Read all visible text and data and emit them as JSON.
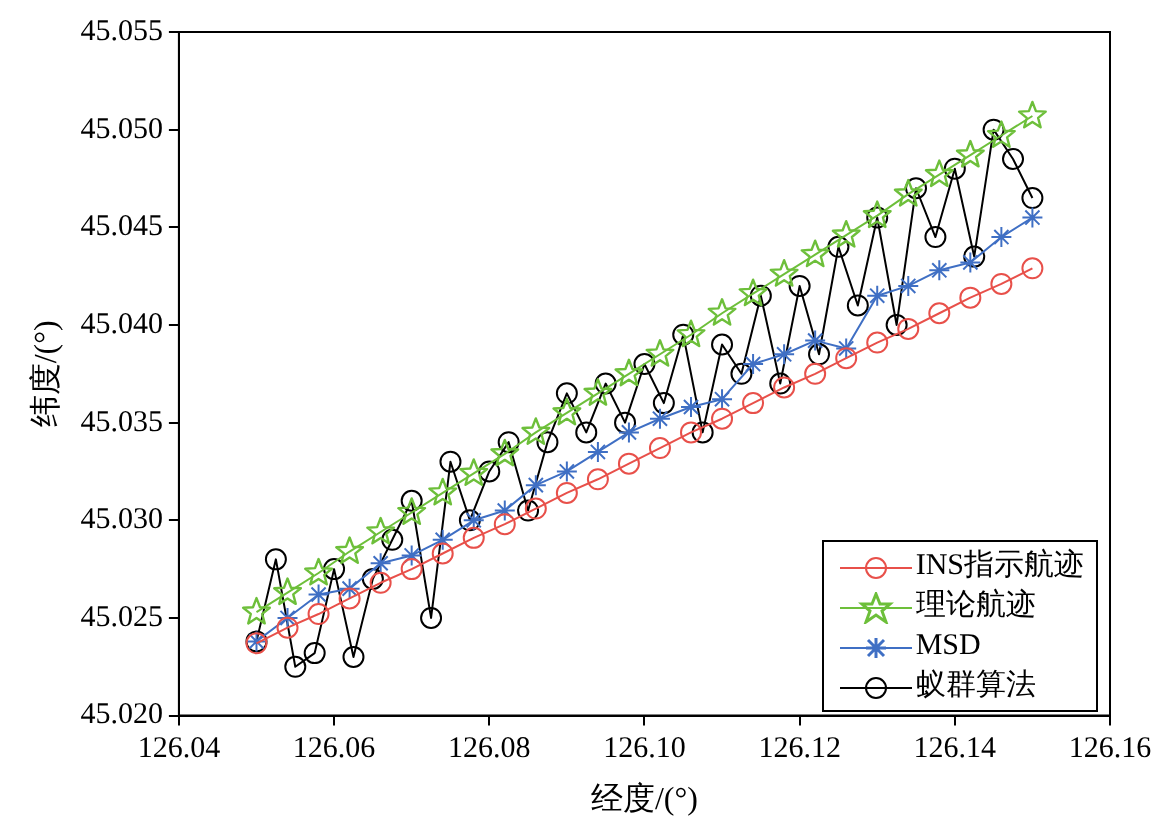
{
  "chart_data": {
    "type": "line",
    "xlabel": "经度/(°)",
    "ylabel": "纬度/(°)",
    "xlim": [
      126.04,
      126.16
    ],
    "xticks": [
      {
        "value": 126.04,
        "label": "126.04"
      },
      {
        "value": 126.06,
        "label": "126.06"
      },
      {
        "value": 126.08,
        "label": "126.08"
      },
      {
        "value": 126.1,
        "label": "126.10"
      },
      {
        "value": 126.12,
        "label": "126.12"
      },
      {
        "value": 126.14,
        "label": "126.14"
      },
      {
        "value": 126.16,
        "label": "126.16"
      }
    ],
    "ylim": [
      45.02,
      45.055
    ],
    "yticks": [
      {
        "value": 45.02,
        "label": "45.020"
      },
      {
        "value": 45.025,
        "label": "45.025"
      },
      {
        "value": 45.03,
        "label": "45.030"
      },
      {
        "value": 45.035,
        "label": "45.035"
      },
      {
        "value": 45.04,
        "label": "45.040"
      },
      {
        "value": 45.045,
        "label": "45.045"
      },
      {
        "value": 45.05,
        "label": "45.050"
      },
      {
        "value": 45.055,
        "label": "45.055"
      }
    ],
    "grid": false,
    "legend": "bottom right",
    "series": [
      {
        "name": "INS指示航迹",
        "color": "#e8504a",
        "marker": "circle",
        "x": [
          126.05,
          126.054,
          126.058,
          126.062,
          126.066,
          126.07,
          126.074,
          126.078,
          126.082,
          126.086,
          126.09,
          126.094,
          126.098,
          126.102,
          126.106,
          126.11,
          126.114,
          126.118,
          126.122,
          126.126,
          126.13,
          126.134,
          126.138,
          126.142,
          126.146,
          126.15
        ],
        "values": [
          45.0237,
          45.0245,
          45.0252,
          45.026,
          45.0268,
          45.0275,
          45.0283,
          45.0291,
          45.0298,
          45.0306,
          45.0314,
          45.0321,
          45.0329,
          45.0337,
          45.0345,
          45.0352,
          45.036,
          45.0368,
          45.0375,
          45.0383,
          45.0391,
          45.0398,
          45.0406,
          45.0414,
          45.0421,
          45.0429
        ]
      },
      {
        "name": "理论航迹",
        "color": "#6dbf3a",
        "marker": "star",
        "x": [
          126.05,
          126.054,
          126.058,
          126.062,
          126.066,
          126.07,
          126.074,
          126.078,
          126.082,
          126.086,
          126.09,
          126.094,
          126.098,
          126.102,
          126.106,
          126.11,
          126.114,
          126.118,
          126.122,
          126.126,
          126.13,
          126.134,
          126.138,
          126.142,
          126.146,
          126.15
        ],
        "values": [
          45.0253,
          45.0263,
          45.0273,
          45.0284,
          45.0294,
          45.0304,
          45.0314,
          45.0324,
          45.0334,
          45.0345,
          45.0355,
          45.0365,
          45.0375,
          45.0385,
          45.0395,
          45.0406,
          45.0416,
          45.0426,
          45.0436,
          45.0446,
          45.0456,
          45.0467,
          45.0477,
          45.0487,
          45.0497,
          45.0507
        ]
      },
      {
        "name": "MSD",
        "color": "#3f6fc4",
        "marker": "cross",
        "x": [
          126.05,
          126.054,
          126.058,
          126.062,
          126.066,
          126.07,
          126.074,
          126.078,
          126.082,
          126.086,
          126.09,
          126.094,
          126.098,
          126.102,
          126.106,
          126.11,
          126.114,
          126.118,
          126.122,
          126.126,
          126.13,
          126.134,
          126.138,
          126.142,
          126.146,
          126.15
        ],
        "values": [
          45.0238,
          45.025,
          45.0262,
          45.0265,
          45.0278,
          45.0282,
          45.029,
          45.03,
          45.0305,
          45.0318,
          45.0325,
          45.0335,
          45.0345,
          45.0352,
          45.0358,
          45.0362,
          45.038,
          45.0385,
          45.0392,
          45.0388,
          45.0415,
          45.042,
          45.0428,
          45.0432,
          45.0445,
          45.0455
        ]
      },
      {
        "name": "蚁群算法",
        "color": "#000000",
        "marker": "circle",
        "x": [
          126.05,
          126.0525,
          126.055,
          126.0575,
          126.06,
          126.0625,
          126.065,
          126.0675,
          126.07,
          126.0725,
          126.075,
          126.0775,
          126.08,
          126.0825,
          126.085,
          126.0875,
          126.09,
          126.0925,
          126.095,
          126.0975,
          126.1,
          126.1025,
          126.105,
          126.1075,
          126.11,
          126.1125,
          126.115,
          126.1175,
          126.12,
          126.1225,
          126.125,
          126.1275,
          126.13,
          126.1325,
          126.135,
          126.1375,
          126.14,
          126.1425,
          126.145,
          126.1475,
          126.15
        ],
        "values": [
          45.0238,
          45.028,
          45.0225,
          45.0232,
          45.0275,
          45.023,
          45.027,
          45.029,
          45.031,
          45.025,
          45.033,
          45.03,
          45.0325,
          45.034,
          45.0305,
          45.034,
          45.0365,
          45.0345,
          45.037,
          45.035,
          45.038,
          45.036,
          45.0395,
          45.0345,
          45.039,
          45.0375,
          45.0415,
          45.037,
          45.042,
          45.0385,
          45.044,
          45.041,
          45.0455,
          45.04,
          45.047,
          45.0445,
          45.048,
          45.0435,
          45.05,
          45.0485,
          45.0465
        ]
      }
    ]
  }
}
